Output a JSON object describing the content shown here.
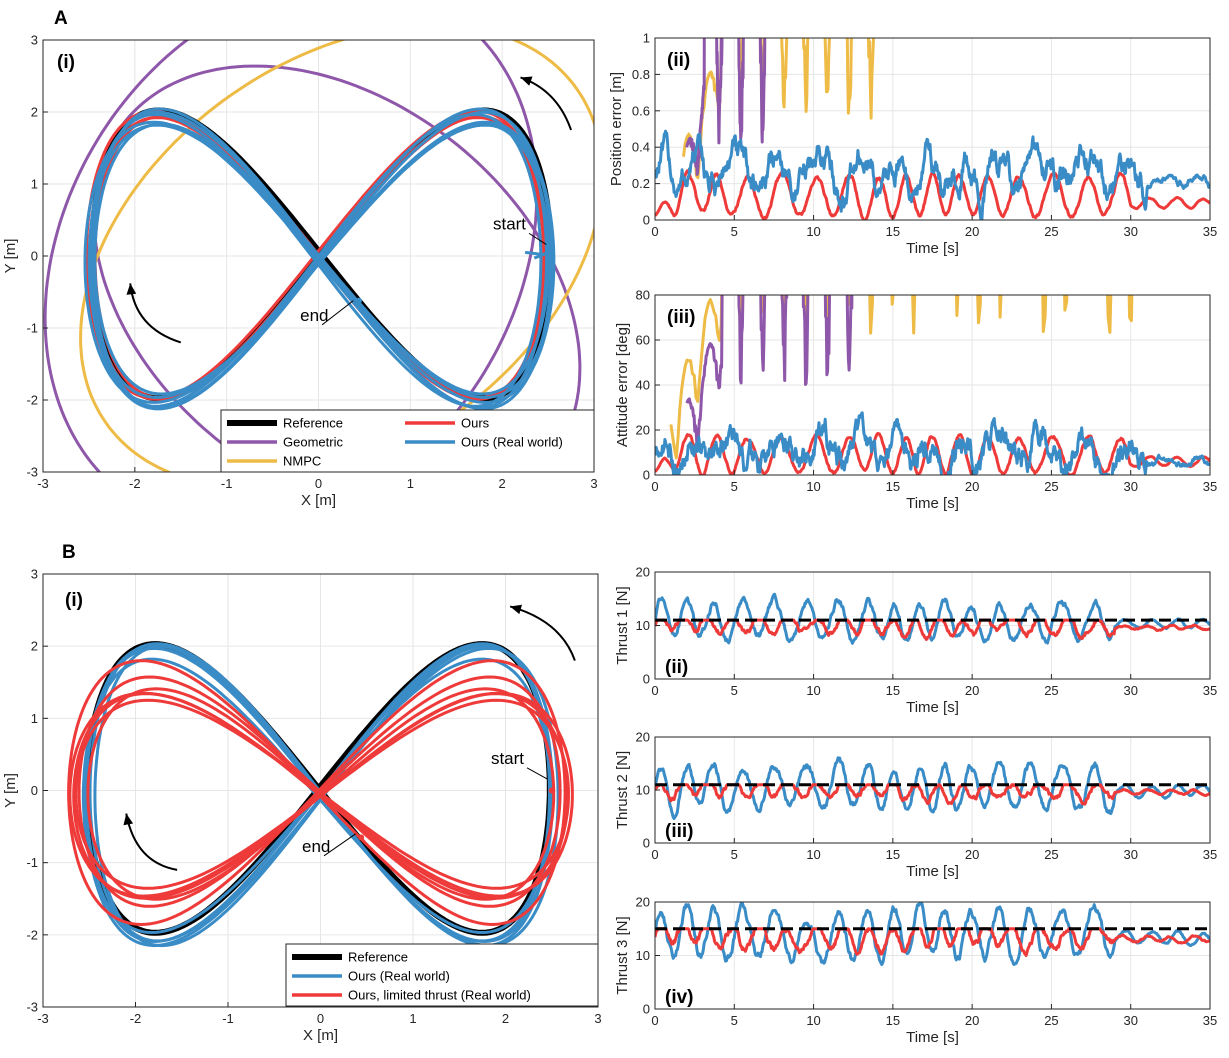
{
  "colors": {
    "reference": "#000000",
    "geometric": "#8E57A9",
    "nmpc": "#EDBB46",
    "ours": "#EF3A3A",
    "real": "#3A8CC7",
    "grid": "#e6e6e6",
    "axis": "#262626"
  },
  "chart_data": [
    {
      "id": "A-i",
      "type": "line",
      "section": "A",
      "panel_label": "(i)",
      "xlabel": "X [m]",
      "ylabel": "Y [m]",
      "xlim": [
        -3,
        3
      ],
      "ylim": [
        -3,
        3
      ],
      "xticks": [
        "-3",
        "-2",
        "-1",
        "0",
        "1",
        "2",
        "3"
      ],
      "yticks": [
        "-3",
        "-2",
        "-1",
        "0",
        "1",
        "2",
        "3"
      ],
      "grid": true,
      "legend": {
        "placement": "bottom-right",
        "entries": [
          "Reference",
          "Geometric",
          "NMPC",
          "Ours",
          "Ours (Real world)"
        ]
      },
      "annotations": [
        "start",
        "end"
      ],
      "series": [
        {
          "name": "Reference",
          "shape": "figure-eight",
          "amp_x": 2.5,
          "amp_y": 2.0,
          "start_point": [
            2.5,
            0.0
          ]
        },
        {
          "name": "Geometric",
          "shape": "divergent ellipses",
          "x_range": [
            -2.7,
            2.7
          ],
          "y_range": [
            -3,
            3
          ]
        },
        {
          "name": "NMPC",
          "shape": "divergent ellipse",
          "x_range": [
            -2.3,
            2.7
          ],
          "y_range": [
            -3,
            3
          ]
        },
        {
          "name": "Ours",
          "shape": "figure-eight",
          "amp_x": 2.48,
          "amp_y": 1.97
        },
        {
          "name": "Ours (Real world)",
          "shape": "figure-eight loops",
          "amp_x": 2.5,
          "amp_y": 1.95
        }
      ]
    },
    {
      "id": "A-ii",
      "type": "line",
      "section": "A",
      "panel_label": "(ii)",
      "xlabel": "Time [s]",
      "ylabel": "Position error [m]",
      "xlim": [
        0,
        35
      ],
      "ylim": [
        0,
        1
      ],
      "xticks": [
        "0",
        "5",
        "10",
        "15",
        "20",
        "25",
        "30",
        "35"
      ],
      "yticks": [
        "0",
        "0.2",
        "0.4",
        "0.6",
        "0.8",
        "1"
      ],
      "grid": true,
      "series": [
        {
          "name": "Geometric",
          "shape": "diverges off scale",
          "x_range": [
            2.0,
            7.5
          ],
          "peaks": [
            [
              3.1,
              0.42
            ],
            [
              4.6,
              1.0
            ],
            [
              6.9,
              1.0
            ]
          ]
        },
        {
          "name": "NMPC",
          "shape": "diverges off scale",
          "x_range": [
            1.8,
            14.2
          ],
          "peaks": [
            [
              4.0,
              0.55
            ],
            [
              7.3,
              1.0
            ],
            [
              14.0,
              0.65
            ]
          ]
        },
        {
          "name": "Ours",
          "mean": 0.13,
          "amplitude": 0.11,
          "period_s": 1.9,
          "end_value": 0.08
        },
        {
          "name": "Ours (Real world)",
          "mean": 0.26,
          "amplitude": 0.12,
          "max": 0.55,
          "end_value": 0.2
        }
      ]
    },
    {
      "id": "A-iii",
      "type": "line",
      "section": "A",
      "panel_label": "(iii)",
      "xlabel": "Time [s]",
      "ylabel": "Attitude error [deg]",
      "xlim": [
        0,
        35
      ],
      "ylim": [
        0,
        80
      ],
      "xticks": [
        "0",
        "5",
        "10",
        "15",
        "20",
        "25",
        "30",
        "35"
      ],
      "yticks": [
        "0",
        "20",
        "40",
        "60",
        "80"
      ],
      "grid": true,
      "series": [
        {
          "name": "Geometric",
          "shape": "diverges off scale",
          "x_range": [
            2.0,
            13.0
          ],
          "peaks": [
            [
              4.2,
              40
            ],
            [
              5.5,
              80
            ],
            [
              9.5,
              80
            ]
          ]
        },
        {
          "name": "NMPC",
          "shape": "diverges off scale",
          "x_range": [
            1.0,
            30.5
          ],
          "peaks": [
            [
              4.2,
              60
            ],
            [
              8.0,
              80
            ],
            [
              29.5,
              80
            ]
          ]
        },
        {
          "name": "Ours",
          "mean": 9,
          "amplitude": 8,
          "max": 17,
          "end_value": 5
        },
        {
          "name": "Ours (Real world)",
          "mean": 10,
          "amplitude": 9,
          "max": 33,
          "end_value": 5
        }
      ]
    },
    {
      "id": "B-i",
      "type": "line",
      "section": "B",
      "panel_label": "(i)",
      "xlabel": "X [m]",
      "ylabel": "Y [m]",
      "xlim": [
        -3,
        3
      ],
      "ylim": [
        -3,
        3
      ],
      "xticks": [
        "-3",
        "-2",
        "-1",
        "0",
        "1",
        "2",
        "3"
      ],
      "yticks": [
        "-3",
        "-2",
        "-1",
        "0",
        "1",
        "2",
        "3"
      ],
      "grid": true,
      "legend": {
        "placement": "bottom-right",
        "entries": [
          "Reference",
          "Ours (Real world)",
          "Ours, limited thrust (Real world)"
        ]
      },
      "annotations": [
        "start",
        "end"
      ],
      "series": [
        {
          "name": "Reference",
          "shape": "figure-eight",
          "amp_x": 2.5,
          "amp_y": 2.0
        },
        {
          "name": "Ours (Real world)",
          "shape": "figure-eight loops",
          "amp_x": 2.5,
          "amp_y": 1.95
        },
        {
          "name": "Ours, limited thrust (Real world)",
          "shape": "figure-eight loops",
          "amp_x": 2.6,
          "amp_y": 1.6
        }
      ]
    },
    {
      "id": "B-ii",
      "type": "line",
      "section": "B",
      "panel_label": "(ii)",
      "xlabel": "Time [s]",
      "ylabel": "Thrust 1 [N]",
      "xlim": [
        0,
        35
      ],
      "ylim": [
        0,
        20
      ],
      "xticks": [
        "0",
        "5",
        "10",
        "15",
        "20",
        "25",
        "30",
        "35"
      ],
      "yticks": [
        "0",
        "10",
        "20"
      ],
      "grid": true,
      "series": [
        {
          "name": "limit",
          "style": "dashed",
          "value": 11
        },
        {
          "name": "Ours (Real world)",
          "mean": 11,
          "amplitude": 3.5,
          "max": 19.5
        },
        {
          "name": "Ours, limited thrust (Real world)",
          "mean": 10,
          "amplitude": 1.5
        }
      ]
    },
    {
      "id": "B-iii",
      "type": "line",
      "section": "B",
      "panel_label": "(iii)",
      "xlabel": "Time [s]",
      "ylabel": "Thrust 2 [N]",
      "xlim": [
        0,
        35
      ],
      "ylim": [
        0,
        20
      ],
      "xticks": [
        "0",
        "5",
        "10",
        "15",
        "20",
        "25",
        "30",
        "35"
      ],
      "yticks": [
        "0",
        "10",
        "20"
      ],
      "grid": true,
      "series": [
        {
          "name": "limit",
          "style": "dashed",
          "value": 11
        },
        {
          "name": "Ours (Real world)",
          "mean": 10.5,
          "amplitude": 4,
          "max": 16
        },
        {
          "name": "Ours, limited thrust (Real world)",
          "mean": 10,
          "amplitude": 1.5
        }
      ]
    },
    {
      "id": "B-iv",
      "type": "line",
      "section": "B",
      "panel_label": "(iv)",
      "xlabel": "Time [s]",
      "ylabel": "Thrust 3 [N]",
      "xlim": [
        0,
        35
      ],
      "ylim": [
        0,
        20
      ],
      "xticks": [
        "0",
        "5",
        "10",
        "15",
        "20",
        "25",
        "30",
        "35"
      ],
      "yticks": [
        "0",
        "10",
        "20"
      ],
      "grid": true,
      "series": [
        {
          "name": "limit",
          "style": "dashed",
          "value": 15
        },
        {
          "name": "Ours (Real world)",
          "mean": 14,
          "amplitude": 4.5,
          "max": 20
        },
        {
          "name": "Ours, limited thrust (Real world)",
          "mean": 13.5,
          "amplitude": 2,
          "min": 9
        }
      ]
    }
  ]
}
